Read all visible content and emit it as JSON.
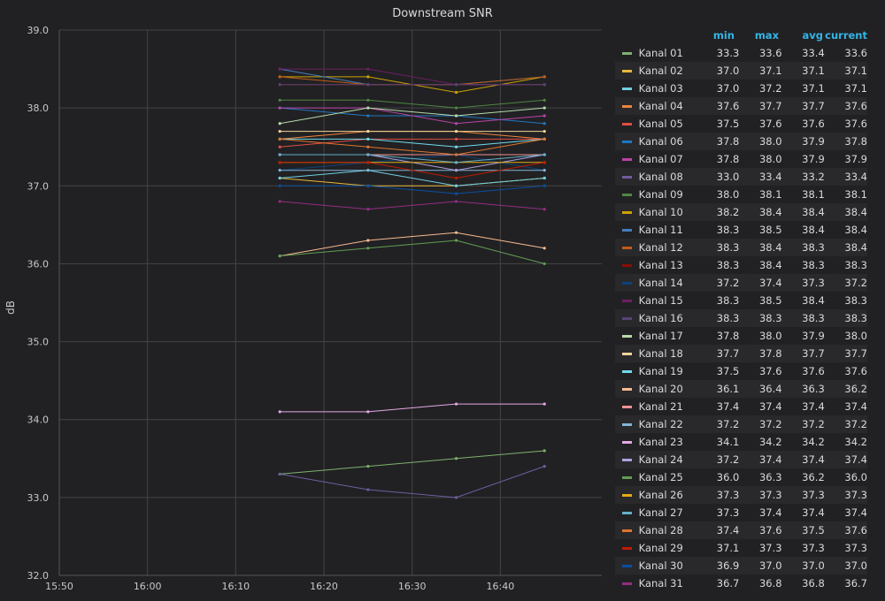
{
  "chart_data": {
    "type": "line",
    "title": "Downstream SNR",
    "ylabel": "dB",
    "xlabel": "",
    "ylim": [
      32.0,
      39.0
    ],
    "yticks": [
      "32.0",
      "33.0",
      "34.0",
      "35.0",
      "36.0",
      "37.0",
      "38.0",
      "39.0"
    ],
    "xticks": [
      "15:50",
      "16:00",
      "16:10",
      "16:20",
      "16:30",
      "16:40"
    ],
    "x": [
      "16:15",
      "16:25",
      "16:35",
      "16:45"
    ],
    "legend_headers": [
      "min",
      "max",
      "avg",
      "current"
    ],
    "series": [
      {
        "name": "Kanal 01",
        "color": "#7eb26d",
        "values": [
          33.3,
          33.4,
          33.5,
          33.6
        ],
        "min": "33.3",
        "max": "33.6",
        "avg": "33.4",
        "current": "33.6"
      },
      {
        "name": "Kanal 02",
        "color": "#eab839",
        "values": [
          37.1,
          37.0,
          37.0,
          37.1
        ],
        "min": "37.0",
        "max": "37.1",
        "avg": "37.1",
        "current": "37.1"
      },
      {
        "name": "Kanal 03",
        "color": "#6ed0e0",
        "values": [
          37.1,
          37.2,
          37.0,
          37.1
        ],
        "min": "37.0",
        "max": "37.2",
        "avg": "37.1",
        "current": "37.1"
      },
      {
        "name": "Kanal 04",
        "color": "#ef843c",
        "values": [
          37.6,
          37.7,
          37.7,
          37.6
        ],
        "min": "37.6",
        "max": "37.7",
        "avg": "37.7",
        "current": "37.6"
      },
      {
        "name": "Kanal 05",
        "color": "#e24d42",
        "values": [
          37.5,
          37.6,
          37.6,
          37.6
        ],
        "min": "37.5",
        "max": "37.6",
        "avg": "37.6",
        "current": "37.6"
      },
      {
        "name": "Kanal 06",
        "color": "#1f78c1",
        "values": [
          38.0,
          37.9,
          37.9,
          37.8
        ],
        "min": "37.8",
        "max": "38.0",
        "avg": "37.9",
        "current": "37.8"
      },
      {
        "name": "Kanal 07",
        "color": "#ba43a9",
        "values": [
          38.0,
          38.0,
          37.8,
          37.9
        ],
        "min": "37.8",
        "max": "38.0",
        "avg": "37.9",
        "current": "37.9"
      },
      {
        "name": "Kanal 08",
        "color": "#705da0",
        "values": [
          33.3,
          33.1,
          33.0,
          33.4
        ],
        "min": "33.0",
        "max": "33.4",
        "avg": "33.2",
        "current": "33.4"
      },
      {
        "name": "Kanal 09",
        "color": "#508642",
        "values": [
          38.1,
          38.1,
          38.0,
          38.1
        ],
        "min": "38.0",
        "max": "38.1",
        "avg": "38.1",
        "current": "38.1"
      },
      {
        "name": "Kanal 10",
        "color": "#cca300",
        "values": [
          38.4,
          38.4,
          38.2,
          38.4
        ],
        "min": "38.2",
        "max": "38.4",
        "avg": "38.4",
        "current": "38.4"
      },
      {
        "name": "Kanal 11",
        "color": "#447ebc",
        "values": [
          38.5,
          38.3,
          38.3,
          38.4
        ],
        "min": "38.3",
        "max": "38.5",
        "avg": "38.4",
        "current": "38.4"
      },
      {
        "name": "Kanal 12",
        "color": "#c15c17",
        "values": [
          38.4,
          38.3,
          38.3,
          38.4
        ],
        "min": "38.3",
        "max": "38.4",
        "avg": "38.3",
        "current": "38.4"
      },
      {
        "name": "Kanal 13",
        "color": "#890f02",
        "values": [
          38.3,
          38.3,
          38.3,
          38.3
        ],
        "min": "38.3",
        "max": "38.4",
        "avg": "38.3",
        "current": "38.3"
      },
      {
        "name": "Kanal 14",
        "color": "#0a437c",
        "values": [
          37.2,
          37.3,
          37.4,
          37.2
        ],
        "min": "37.2",
        "max": "37.4",
        "avg": "37.3",
        "current": "37.2"
      },
      {
        "name": "Kanal 15",
        "color": "#6d1f62",
        "values": [
          38.5,
          38.5,
          38.3,
          38.3
        ],
        "min": "38.3",
        "max": "38.5",
        "avg": "38.4",
        "current": "38.3"
      },
      {
        "name": "Kanal 16",
        "color": "#584477",
        "values": [
          38.3,
          38.3,
          38.3,
          38.3
        ],
        "min": "38.3",
        "max": "38.3",
        "avg": "38.3",
        "current": "38.3"
      },
      {
        "name": "Kanal 17",
        "color": "#b7dbab",
        "values": [
          37.8,
          38.0,
          37.9,
          38.0
        ],
        "min": "37.8",
        "max": "38.0",
        "avg": "37.9",
        "current": "38.0"
      },
      {
        "name": "Kanal 18",
        "color": "#f4d598",
        "values": [
          37.7,
          37.7,
          37.7,
          37.7
        ],
        "min": "37.7",
        "max": "37.8",
        "avg": "37.7",
        "current": "37.7"
      },
      {
        "name": "Kanal 19",
        "color": "#70dbed",
        "values": [
          37.6,
          37.6,
          37.5,
          37.6
        ],
        "min": "37.5",
        "max": "37.6",
        "avg": "37.6",
        "current": "37.6"
      },
      {
        "name": "Kanal 20",
        "color": "#f9ba8f",
        "values": [
          36.1,
          36.3,
          36.4,
          36.2
        ],
        "min": "36.1",
        "max": "36.4",
        "avg": "36.3",
        "current": "36.2"
      },
      {
        "name": "Kanal 21",
        "color": "#f29191",
        "values": [
          37.4,
          37.4,
          37.4,
          37.4
        ],
        "min": "37.4",
        "max": "37.4",
        "avg": "37.4",
        "current": "37.4"
      },
      {
        "name": "Kanal 22",
        "color": "#82b5d8",
        "values": [
          37.2,
          37.2,
          37.2,
          37.2
        ],
        "min": "37.2",
        "max": "37.2",
        "avg": "37.2",
        "current": "37.2"
      },
      {
        "name": "Kanal 23",
        "color": "#e5a8e2",
        "values": [
          34.1,
          34.1,
          34.2,
          34.2
        ],
        "min": "34.1",
        "max": "34.2",
        "avg": "34.2",
        "current": "34.2"
      },
      {
        "name": "Kanal 24",
        "color": "#aea2e0",
        "values": [
          37.4,
          37.4,
          37.2,
          37.4
        ],
        "min": "37.2",
        "max": "37.4",
        "avg": "37.4",
        "current": "37.4"
      },
      {
        "name": "Kanal 25",
        "color": "#629e51",
        "values": [
          36.1,
          36.2,
          36.3,
          36.0
        ],
        "min": "36.0",
        "max": "36.3",
        "avg": "36.2",
        "current": "36.0"
      },
      {
        "name": "Kanal 26",
        "color": "#e5ac0e",
        "values": [
          37.3,
          37.3,
          37.3,
          37.3
        ],
        "min": "37.3",
        "max": "37.3",
        "avg": "37.3",
        "current": "37.3"
      },
      {
        "name": "Kanal 27",
        "color": "#64b0c8",
        "values": [
          37.4,
          37.4,
          37.3,
          37.4
        ],
        "min": "37.3",
        "max": "37.4",
        "avg": "37.4",
        "current": "37.4"
      },
      {
        "name": "Kanal 28",
        "color": "#e0752d",
        "values": [
          37.6,
          37.5,
          37.4,
          37.6
        ],
        "min": "37.4",
        "max": "37.6",
        "avg": "37.5",
        "current": "37.6"
      },
      {
        "name": "Kanal 29",
        "color": "#bf1b00",
        "values": [
          37.3,
          37.3,
          37.1,
          37.3
        ],
        "min": "37.1",
        "max": "37.3",
        "avg": "37.3",
        "current": "37.3"
      },
      {
        "name": "Kanal 30",
        "color": "#0a50a1",
        "values": [
          37.0,
          37.0,
          36.9,
          37.0
        ],
        "min": "36.9",
        "max": "37.0",
        "avg": "37.0",
        "current": "37.0"
      },
      {
        "name": "Kanal 31",
        "color": "#962d82",
        "values": [
          36.8,
          36.7,
          36.8,
          36.7
        ],
        "min": "36.7",
        "max": "36.8",
        "avg": "36.8",
        "current": "36.7"
      }
    ]
  }
}
